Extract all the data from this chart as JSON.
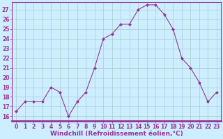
{
  "x": [
    0,
    1,
    2,
    3,
    4,
    5,
    6,
    7,
    8,
    9,
    10,
    11,
    12,
    13,
    14,
    15,
    16,
    17,
    18,
    19,
    20,
    21,
    22,
    23
  ],
  "y": [
    16.5,
    17.5,
    17.5,
    17.5,
    19.0,
    18.5,
    16.0,
    17.5,
    18.5,
    21.0,
    24.0,
    24.5,
    25.5,
    25.5,
    27.0,
    27.5,
    27.5,
    26.5,
    25.0,
    22.0,
    21.0,
    19.5,
    17.5,
    18.5
  ],
  "line_color": "#993399",
  "marker": "D",
  "markersize": 2.0,
  "linewidth": 0.8,
  "xlabel": "Windchill (Refroidissement éolien,°C)",
  "xlabel_fontsize": 6.5,
  "ylabel_ticks": [
    16,
    17,
    18,
    19,
    20,
    21,
    22,
    23,
    24,
    25,
    26,
    27
  ],
  "ylim": [
    15.5,
    27.8
  ],
  "xlim": [
    -0.5,
    23.5
  ],
  "bg_color": "#cceeff",
  "grid_color": "#aacccc",
  "tick_fontsize": 5.5,
  "tick_color": "#993399",
  "label_color": "#993399"
}
